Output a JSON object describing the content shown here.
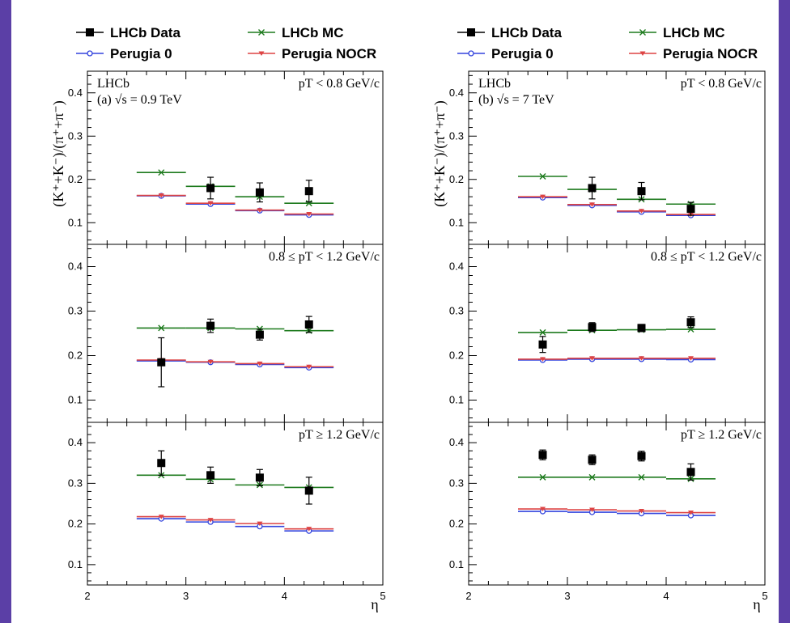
{
  "legend": {
    "items": [
      {
        "label": "LHCb Data",
        "color": "#000000",
        "marker": "square"
      },
      {
        "label": "LHCb MC",
        "color": "#1d7a1d",
        "marker": "x"
      },
      {
        "label": "Perugia 0",
        "color": "#3344dd",
        "marker": "open-circle"
      },
      {
        "label": "Perugia NOCR",
        "color": "#dd4444",
        "marker": "triangle-down"
      }
    ]
  },
  "chart_data": [
    {
      "type": "scatter",
      "column": "left",
      "experiment_label": "LHCb",
      "energy_label": "(a) √s = 0.9 TeV",
      "xlabel": "η",
      "ylabel": "(K⁺+K⁻)/(π⁺+π⁻)",
      "xlim": [
        2,
        5
      ],
      "x_ticks": [
        "2",
        "3",
        "4",
        "5"
      ],
      "y_ticks": [
        "0.1",
        "0.2",
        "0.3",
        "0.4"
      ],
      "panels": [
        {
          "label": "pT < 0.8 GeV/c",
          "ylim": [
            0.05,
            0.45
          ],
          "bins": [
            [
              2.5,
              3.0
            ],
            [
              3.0,
              3.5
            ],
            [
              3.5,
              4.0
            ],
            [
              4.0,
              4.5
            ]
          ],
          "series": [
            {
              "name": "LHCb Data",
              "x": [
                3.25,
                3.75,
                4.25
              ],
              "y": [
                0.18,
                0.17,
                0.173
              ],
              "yerr": [
                0.025,
                0.022,
                0.025
              ]
            },
            {
              "name": "LHCb MC",
              "y": [
                0.216,
                0.184,
                0.16,
                0.145
              ]
            },
            {
              "name": "Perugia 0",
              "y": [
                0.162,
                0.143,
                0.128,
                0.118
              ]
            },
            {
              "name": "Perugia NOCR",
              "y": [
                0.163,
                0.145,
                0.129,
                0.12
              ]
            }
          ]
        },
        {
          "label": "0.8 ≤ pT < 1.2 GeV/c",
          "ylim": [
            0.05,
            0.45
          ],
          "bins": [
            [
              2.5,
              3.0
            ],
            [
              3.0,
              3.5
            ],
            [
              3.5,
              4.0
            ],
            [
              4.0,
              4.5
            ]
          ],
          "series": [
            {
              "name": "LHCb Data",
              "x": [
                2.75,
                3.25,
                3.75,
                4.25
              ],
              "y": [
                0.185,
                0.267,
                0.247,
                0.27
              ],
              "yerr": [
                0.055,
                0.015,
                0.012,
                0.018
              ]
            },
            {
              "name": "LHCb MC",
              "y": [
                0.262,
                0.262,
                0.26,
                0.256
              ]
            },
            {
              "name": "Perugia 0",
              "y": [
                0.188,
                0.185,
                0.18,
                0.173
              ]
            },
            {
              "name": "Perugia NOCR",
              "y": [
                0.19,
                0.186,
                0.182,
                0.175
              ]
            }
          ]
        },
        {
          "label": "pT ≥ 1.2 GeV/c",
          "ylim": [
            0.05,
            0.45
          ],
          "bins": [
            [
              2.5,
              3.0
            ],
            [
              3.0,
              3.5
            ],
            [
              3.5,
              4.0
            ],
            [
              4.0,
              4.5
            ]
          ],
          "series": [
            {
              "name": "LHCb Data",
              "x": [
                2.75,
                3.25,
                3.75,
                4.25
              ],
              "y": [
                0.35,
                0.32,
                0.314,
                0.282
              ],
              "yerr": [
                0.03,
                0.02,
                0.02,
                0.033
              ]
            },
            {
              "name": "LHCb MC",
              "y": [
                0.32,
                0.31,
                0.296,
                0.29
              ]
            },
            {
              "name": "Perugia 0",
              "y": [
                0.213,
                0.205,
                0.194,
                0.183
              ]
            },
            {
              "name": "Perugia NOCR",
              "y": [
                0.218,
                0.21,
                0.201,
                0.188
              ]
            }
          ]
        }
      ]
    },
    {
      "type": "scatter",
      "column": "right",
      "experiment_label": "LHCb",
      "energy_label": "(b) √s = 7 TeV",
      "xlabel": "η",
      "ylabel": "(K⁺+K⁻)/(π⁺+π⁻)",
      "xlim": [
        2,
        5
      ],
      "x_ticks": [
        "2",
        "3",
        "4",
        "5"
      ],
      "y_ticks": [
        "0.1",
        "0.2",
        "0.3",
        "0.4"
      ],
      "panels": [
        {
          "label": "pT < 0.8 GeV/c",
          "ylim": [
            0.05,
            0.45
          ],
          "bins": [
            [
              2.5,
              3.0
            ],
            [
              3.0,
              3.5
            ],
            [
              3.5,
              4.0
            ],
            [
              4.0,
              4.5
            ]
          ],
          "series": [
            {
              "name": "LHCb Data",
              "x": [
                3.25,
                3.75,
                4.25
              ],
              "y": [
                0.18,
                0.173,
                0.132
              ],
              "yerr": [
                0.025,
                0.02,
                0.015
              ]
            },
            {
              "name": "LHCb MC",
              "y": [
                0.207,
                0.177,
                0.154,
                0.143
              ]
            },
            {
              "name": "Perugia 0",
              "y": [
                0.158,
                0.14,
                0.125,
                0.117
              ]
            },
            {
              "name": "Perugia NOCR",
              "y": [
                0.16,
                0.142,
                0.127,
                0.119
              ]
            }
          ]
        },
        {
          "label": "0.8 ≤ pT < 1.2 GeV/c",
          "ylim": [
            0.05,
            0.45
          ],
          "bins": [
            [
              2.5,
              3.0
            ],
            [
              3.0,
              3.5
            ],
            [
              3.5,
              4.0
            ],
            [
              4.0,
              4.5
            ]
          ],
          "series": [
            {
              "name": "LHCb Data",
              "x": [
                2.75,
                3.25,
                3.75,
                4.25
              ],
              "y": [
                0.225,
                0.264,
                0.262,
                0.275
              ],
              "yerr": [
                0.018,
                0.01,
                0.008,
                0.012
              ]
            },
            {
              "name": "LHCb MC",
              "y": [
                0.252,
                0.257,
                0.258,
                0.259
              ]
            },
            {
              "name": "Perugia 0",
              "y": [
                0.19,
                0.192,
                0.192,
                0.191
              ]
            },
            {
              "name": "Perugia NOCR",
              "y": [
                0.192,
                0.194,
                0.194,
                0.194
              ]
            }
          ]
        },
        {
          "label": "pT ≥ 1.2 GeV/c",
          "ylim": [
            0.05,
            0.45
          ],
          "bins": [
            [
              2.5,
              3.0
            ],
            [
              3.0,
              3.5
            ],
            [
              3.5,
              4.0
            ],
            [
              4.0,
              4.5
            ]
          ],
          "series": [
            {
              "name": "LHCb Data",
              "x": [
                2.75,
                3.25,
                3.75,
                4.25
              ],
              "y": [
                0.37,
                0.358,
                0.367,
                0.328
              ],
              "yerr": [
                0.012,
                0.012,
                0.012,
                0.02
              ]
            },
            {
              "name": "LHCb MC",
              "y": [
                0.315,
                0.315,
                0.315,
                0.311
              ]
            },
            {
              "name": "Perugia 0",
              "y": [
                0.231,
                0.229,
                0.226,
                0.221
              ]
            },
            {
              "name": "Perugia NOCR",
              "y": [
                0.237,
                0.235,
                0.232,
                0.228
              ]
            }
          ]
        }
      ]
    }
  ]
}
